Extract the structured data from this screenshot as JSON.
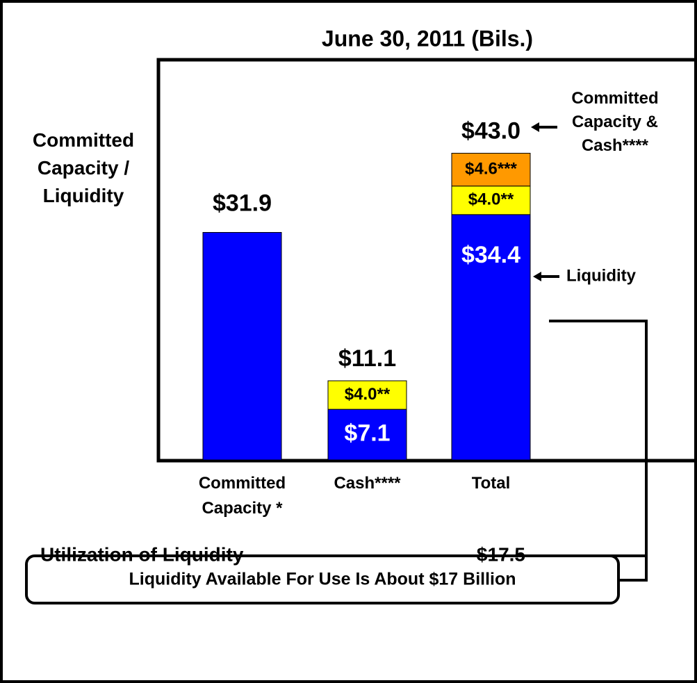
{
  "chart_data": {
    "type": "stacked-bar",
    "title": "June 30, 2011 (Bils.)",
    "y_label": "Committed Capacity / Liquidity",
    "categories": [
      "Committed Capacity *",
      "Cash****",
      "Total"
    ],
    "ylim": [
      0,
      45
    ],
    "series": [
      {
        "color": "#0000ff",
        "label_color": "#ffffff",
        "values": [
          31.9,
          7.1,
          34.4
        ],
        "value_labels": [
          "$31.9",
          "$7.1",
          "$34.4"
        ]
      },
      {
        "color": "#ffff00",
        "label_color": "#000000",
        "values": [
          null,
          4.0,
          4.0
        ],
        "value_labels": [
          null,
          "$4.0**",
          "$4.0**"
        ]
      },
      {
        "color": "#ff9900",
        "label_color": "#000000",
        "values": [
          null,
          null,
          4.6
        ],
        "value_labels": [
          null,
          null,
          "$4.6***"
        ]
      }
    ],
    "total_labels": [
      null,
      "$11.1",
      "$43.0"
    ],
    "annotations": {
      "total_note": "Committed Capacity & Cash****",
      "liquidity_note": "Liquidity",
      "utilization_label": "Utilization of Liquidity",
      "utilization_value": "$17.5",
      "callout": "Liquidity Available For Use Is About $17 Billion"
    }
  }
}
